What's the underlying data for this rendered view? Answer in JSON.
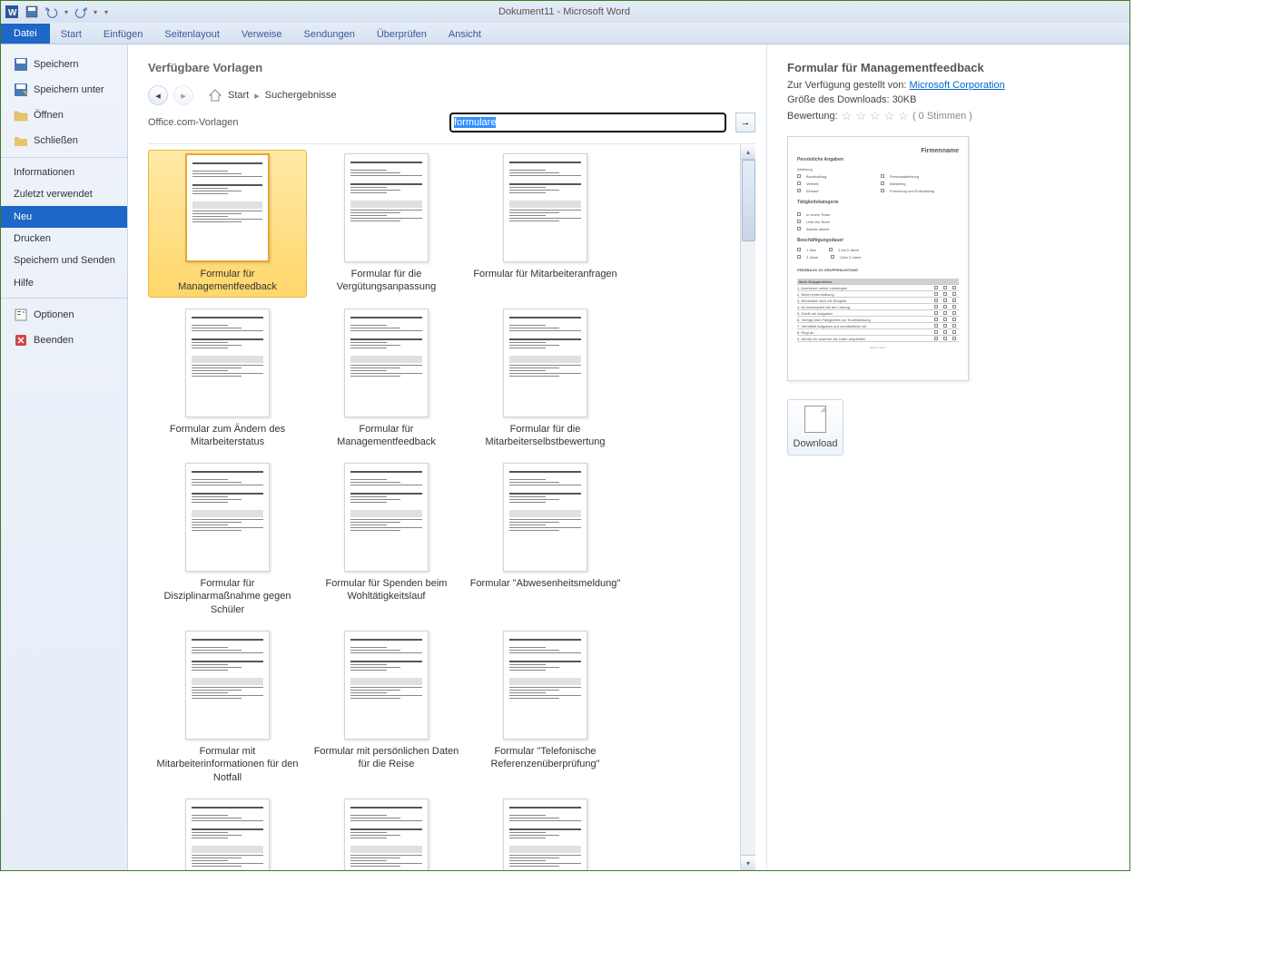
{
  "window": {
    "title": "Dokument11 - Microsoft Word"
  },
  "ribbon": {
    "datei": "Datei",
    "tabs": [
      "Start",
      "Einfügen",
      "Seitenlayout",
      "Verweise",
      "Sendungen",
      "Überprüfen",
      "Ansicht"
    ]
  },
  "backstage": {
    "items": [
      {
        "label": "Speichern",
        "icon": "save"
      },
      {
        "label": "Speichern unter",
        "icon": "save-as"
      },
      {
        "label": "Öffnen",
        "icon": "open"
      },
      {
        "label": "Schließen",
        "icon": "close-doc"
      }
    ],
    "items2": [
      {
        "label": "Informationen"
      },
      {
        "label": "Zuletzt verwendet"
      },
      {
        "label": "Neu",
        "selected": true
      },
      {
        "label": "Drucken"
      },
      {
        "label": "Speichern und Senden"
      },
      {
        "label": "Hilfe"
      }
    ],
    "items3": [
      {
        "label": "Optionen",
        "icon": "options"
      },
      {
        "label": "Beenden",
        "icon": "exit"
      }
    ]
  },
  "templates": {
    "heading": "Verfügbare Vorlagen",
    "breadcrumb": {
      "start": "Start",
      "results": "Suchergebnisse"
    },
    "search": {
      "label": "Office.com-Vorlagen",
      "value": "formulare"
    },
    "items": [
      {
        "label": "Formular für Managementfeedback",
        "selected": true
      },
      {
        "label": "Formular für die Vergütungsanpassung"
      },
      {
        "label": "Formular für Mitarbeiteranfragen"
      },
      {
        "label": "Formular zum Ändern des Mitarbeiterstatus"
      },
      {
        "label": "Formular für Managementfeedback"
      },
      {
        "label": "Formular für die Mitarbeiterselbstbewertung"
      },
      {
        "label": "Formular für Disziplinarmaßnahme gegen Schüler"
      },
      {
        "label": "Formular für Spenden beim Wohltätigkeitslauf"
      },
      {
        "label": "Formular \"Abwesenheitsmeldung\""
      },
      {
        "label": "Formular mit Mitarbeiterinformationen für den Notfall"
      },
      {
        "label": "Formular mit persönlichen Daten für die Reise"
      },
      {
        "label": "Formular \"Telefonische Referenzenüberprüfung\""
      },
      {
        "label": ""
      },
      {
        "label": ""
      },
      {
        "label": ""
      }
    ]
  },
  "preview": {
    "title": "Formular für Managementfeedback",
    "provided_label": "Zur Verfügung gestellt von:",
    "provider": "Microsoft Corporation",
    "size_label": "Größe des Downloads:",
    "size_value": "30KB",
    "rating_label": "Bewertung:",
    "votes": "( 0 Stimmen )",
    "download": "Download",
    "doc": {
      "company": "Firmenname",
      "section1": "Persönliche Angaben",
      "section2": "Tätigkeitskategorie",
      "section3": "Beschäftigungsdauer",
      "section4": "FEEDBACK ZU GRUPPENLEITUNG",
      "subhead": "Mein Gruppenleiter"
    }
  }
}
